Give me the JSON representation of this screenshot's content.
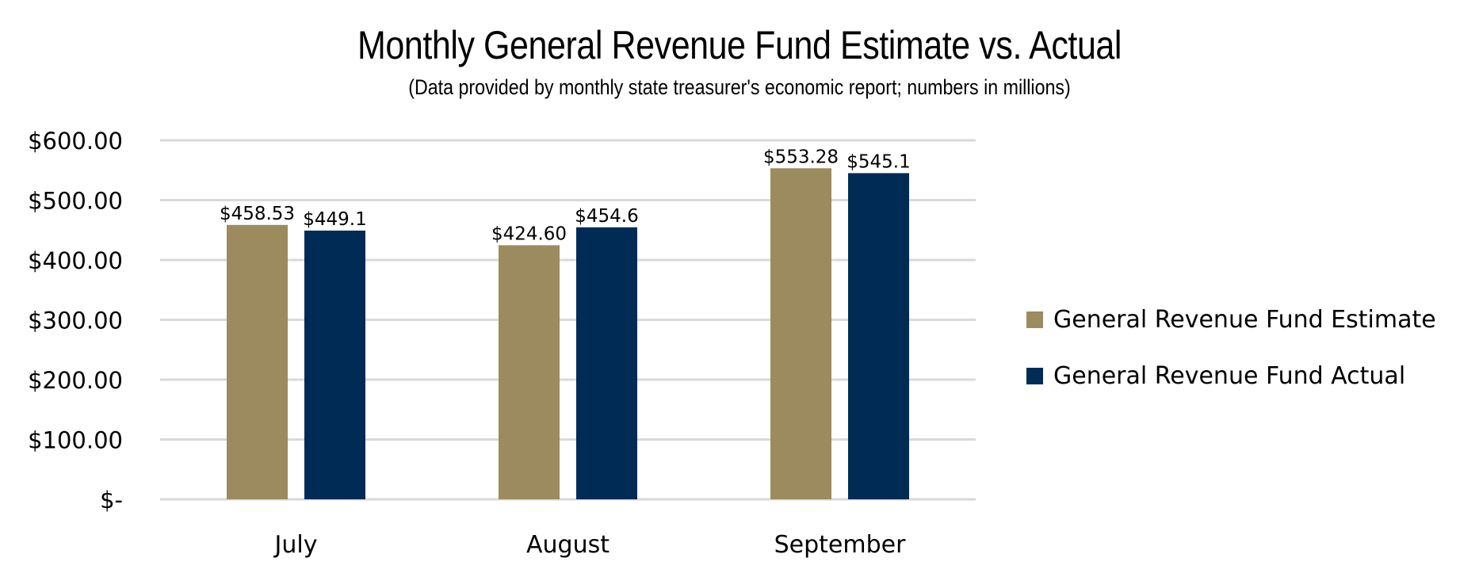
{
  "chart_data": {
    "type": "bar",
    "title": "Monthly General Revenue Fund Estimate vs. Actual",
    "subtitle": "(Data provided by monthly state treasurer's economic report; numbers in millions)",
    "xlabel": "",
    "ylabel": "",
    "categories": [
      "July",
      "August",
      "September"
    ],
    "series": [
      {
        "name": "General Revenue Fund Estimate",
        "color": "#9c8b5e",
        "values": [
          458.53,
          424.6,
          553.28
        ],
        "labels": [
          "$458.53",
          "$424.60",
          "$553.28"
        ]
      },
      {
        "name": "General Revenue Fund Actual",
        "color": "#002b55",
        "values": [
          449.1,
          454.6,
          545.1
        ],
        "labels": [
          "$449.1",
          "$454.6",
          "$545.1"
        ]
      }
    ],
    "ylim": [
      0,
      600
    ],
    "yticks": [
      0,
      100,
      200,
      300,
      400,
      500,
      600
    ],
    "ytick_labels": [
      "$-",
      "$100.00",
      "$200.00",
      "$300.00",
      "$400.00",
      "$500.00",
      "$600.00"
    ],
    "grid": true,
    "grid_color": "#d9d9d9",
    "legend_position": "right"
  }
}
